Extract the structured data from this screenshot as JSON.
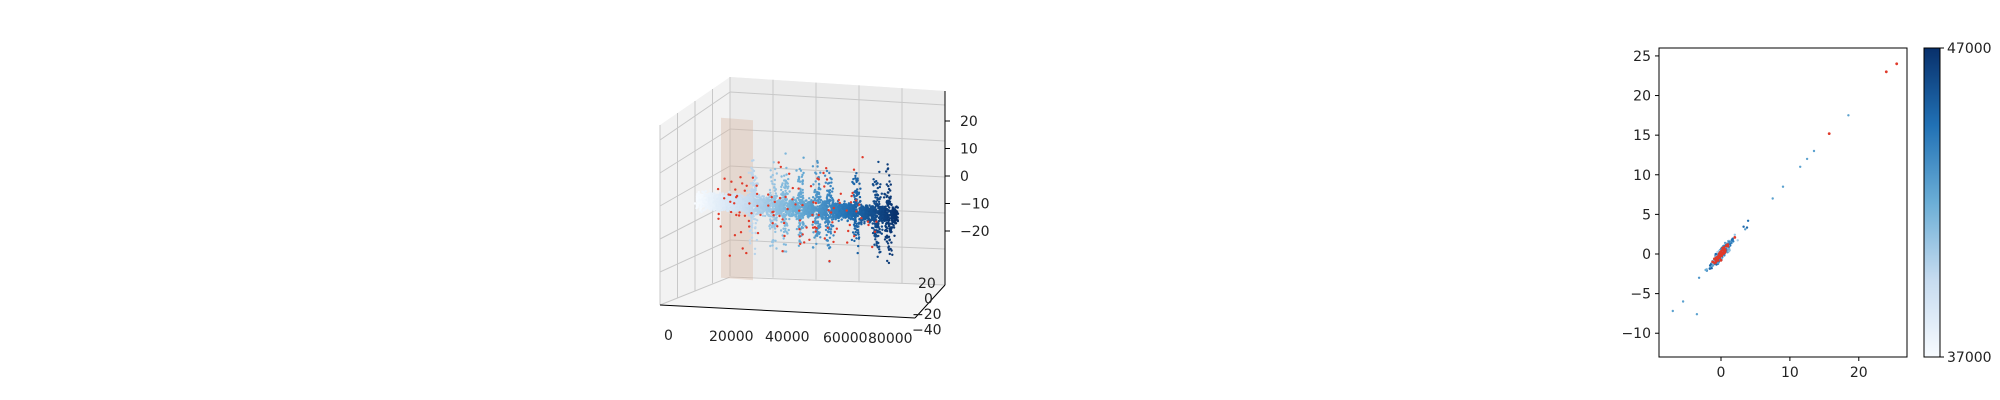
{
  "colors": {
    "series_cmap": [
      "#f7fbff",
      "#c6dbef",
      "#6baed6",
      "#2171b5",
      "#08306b"
    ],
    "highlight": "#e03a2a",
    "slab": "#d8b29a",
    "pane_grid": "#c8c8c8",
    "axis": "#000000"
  },
  "chart_data": [
    {
      "type": "scatter",
      "projection": "3d",
      "title": "",
      "xlabel": "",
      "ylabel": "",
      "zlabel": "",
      "xticks": [
        "0",
        "20000",
        "40000",
        "60000",
        "80000"
      ],
      "yticks": [
        "20",
        "0",
        "−20",
        "−40"
      ],
      "zticks": [
        "20",
        "10",
        "0",
        "−10",
        "−20"
      ],
      "xlim": [
        0,
        100000
      ],
      "ylim": [
        -45,
        30
      ],
      "zlim": [
        -25,
        28
      ],
      "grid": true,
      "colormap": "Blues",
      "highlight_points": "red",
      "shaded_slabs_x": [
        [
          12000,
          22000
        ],
        [
          22000,
          28000
        ]
      ],
      "spike_x": [
        28000,
        38000,
        44000,
        52000,
        60000,
        66000,
        80000,
        90000,
        96000
      ],
      "series": [
        {
          "point_count": 4000,
          "x_range": [
            0,
            100000
          ],
          "z_spread": [
            -25,
            25
          ]
        }
      ]
    },
    {
      "type": "scatter",
      "title": "",
      "xlabel": "",
      "ylabel": "",
      "xticks": [
        "0",
        "10",
        "20"
      ],
      "yticks": [
        "25",
        "20",
        "15",
        "10",
        "5",
        "0",
        "−5",
        "−10"
      ],
      "xlim": [
        -9,
        27
      ],
      "ylim": [
        -13,
        26
      ],
      "grid": false,
      "colorbar": {
        "min_label": "37000",
        "max_label": "47000",
        "colormap": "Blues"
      },
      "highlight_points": [
        {
          "x": 24.0,
          "y": 23.0
        },
        {
          "x": 25.5,
          "y": 24.0
        },
        {
          "x": 15.7,
          "y": 15.2
        },
        {
          "x": 1.0,
          "y": 1.0
        },
        {
          "x": 0.5,
          "y": 0.2
        },
        {
          "x": -0.4,
          "y": -0.5
        },
        {
          "x": 2.0,
          "y": 2.1
        },
        {
          "x": 0.0,
          "y": -0.8
        },
        {
          "x": -1.2,
          "y": -1.0
        }
      ],
      "outlier_points": [
        {
          "x": 18.5,
          "y": 17.5
        },
        {
          "x": 13.5,
          "y": 13.0
        },
        {
          "x": 11.5,
          "y": 11.0
        },
        {
          "x": 9.0,
          "y": 8.5
        },
        {
          "x": -7.0,
          "y": -7.2
        },
        {
          "x": -3.5,
          "y": -7.6
        },
        {
          "x": -5.5,
          "y": -6.0
        },
        {
          "x": 12.5,
          "y": 12.0
        },
        {
          "x": 7.5,
          "y": 7.0
        }
      ],
      "cluster": {
        "point_count": 600,
        "trend_slope": 0.97
      }
    }
  ]
}
